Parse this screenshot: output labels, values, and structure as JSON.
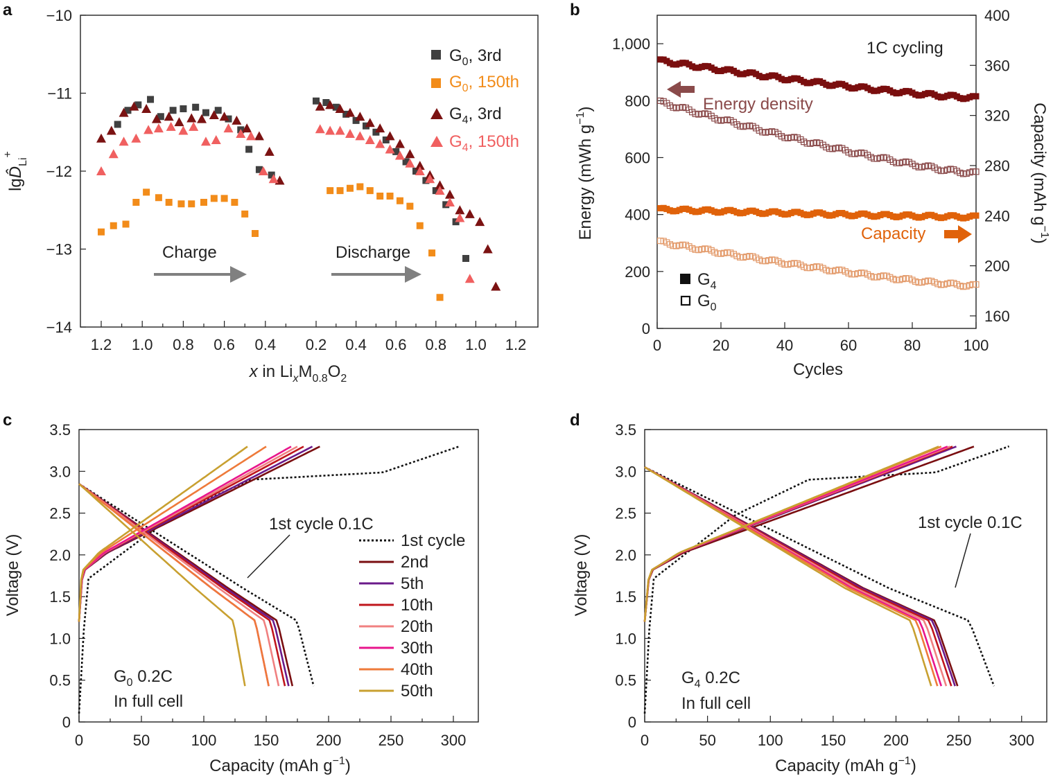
{
  "chart_data": [
    {
      "panel": "a",
      "type": "scatter",
      "ylabel": "lgD̂Li+",
      "xlabel": "x in LixM0.8O2",
      "ylim": [
        -14,
        -10
      ],
      "yticks": [
        "−10",
        "−11",
        "−12",
        "−13",
        "−14"
      ],
      "xticks": [
        "1.2",
        "1.0",
        "0.8",
        "0.6",
        "0.4",
        "0.2",
        "0.4",
        "0.6",
        "0.8",
        "1.0",
        "1.2"
      ],
      "annotations": [
        "Charge",
        "Discharge"
      ],
      "series": [
        {
          "name": "G0, 3rd",
          "color": "#404040",
          "marker": "square",
          "charge": [
            [
              1.12,
              -11.4
            ],
            [
              1.07,
              -11.22
            ],
            [
              1.02,
              -11.15
            ],
            [
              0.96,
              -11.08
            ],
            [
              0.91,
              -11.3
            ],
            [
              0.85,
              -11.22
            ],
            [
              0.8,
              -11.2
            ],
            [
              0.74,
              -11.18
            ],
            [
              0.69,
              -11.25
            ],
            [
              0.63,
              -11.22
            ],
            [
              0.58,
              -11.33
            ],
            [
              0.52,
              -11.47
            ],
            [
              0.48,
              -11.72
            ],
            [
              0.43,
              -11.98
            ],
            [
              0.37,
              -12.05
            ]
          ],
          "discharge": [
            [
              0.2,
              -11.1
            ],
            [
              0.25,
              -11.12
            ],
            [
              0.3,
              -11.18
            ],
            [
              0.35,
              -11.27
            ],
            [
              0.4,
              -11.35
            ],
            [
              0.45,
              -11.42
            ],
            [
              0.5,
              -11.5
            ],
            [
              0.55,
              -11.6
            ],
            [
              0.6,
              -11.75
            ],
            [
              0.65,
              -11.88
            ],
            [
              0.7,
              -12.0
            ],
            [
              0.75,
              -12.12
            ],
            [
              0.8,
              -12.25
            ],
            [
              0.85,
              -12.43
            ],
            [
              0.9,
              -12.65
            ],
            [
              0.95,
              -13.12
            ]
          ]
        },
        {
          "name": "G0, 150th",
          "color": "#f28c1a",
          "marker": "square",
          "charge": [
            [
              1.2,
              -12.78
            ],
            [
              1.14,
              -12.7
            ],
            [
              1.08,
              -12.68
            ],
            [
              1.03,
              -12.4
            ],
            [
              0.98,
              -12.27
            ],
            [
              0.92,
              -12.34
            ],
            [
              0.87,
              -12.4
            ],
            [
              0.81,
              -12.42
            ],
            [
              0.76,
              -12.42
            ],
            [
              0.7,
              -12.4
            ],
            [
              0.65,
              -12.35
            ],
            [
              0.6,
              -12.35
            ],
            [
              0.55,
              -12.4
            ],
            [
              0.5,
              -12.55
            ],
            [
              0.45,
              -12.8
            ]
          ],
          "discharge": [
            [
              0.27,
              -12.25
            ],
            [
              0.32,
              -12.25
            ],
            [
              0.37,
              -12.22
            ],
            [
              0.42,
              -12.2
            ],
            [
              0.47,
              -12.25
            ],
            [
              0.52,
              -12.32
            ],
            [
              0.57,
              -12.32
            ],
            [
              0.62,
              -12.38
            ],
            [
              0.67,
              -12.45
            ],
            [
              0.72,
              -12.7
            ],
            [
              0.78,
              -13.05
            ],
            [
              0.82,
              -13.62
            ]
          ]
        },
        {
          "name": "G4, 3rd",
          "color": "#7b1212",
          "marker": "triangle",
          "charge": [
            [
              1.2,
              -11.58
            ],
            [
              1.15,
              -11.48
            ],
            [
              1.09,
              -11.25
            ],
            [
              1.04,
              -11.17
            ],
            [
              0.98,
              -11.2
            ],
            [
              0.93,
              -11.33
            ],
            [
              0.87,
              -11.3
            ],
            [
              0.82,
              -11.37
            ],
            [
              0.76,
              -11.32
            ],
            [
              0.71,
              -11.33
            ],
            [
              0.65,
              -11.28
            ],
            [
              0.6,
              -11.3
            ],
            [
              0.54,
              -11.35
            ],
            [
              0.49,
              -11.45
            ],
            [
              0.43,
              -11.55
            ],
            [
              0.38,
              -11.75
            ],
            [
              0.33,
              -12.12
            ]
          ],
          "discharge": [
            [
              0.22,
              -11.17
            ],
            [
              0.27,
              -11.15
            ],
            [
              0.32,
              -11.2
            ],
            [
              0.37,
              -11.25
            ],
            [
              0.42,
              -11.3
            ],
            [
              0.47,
              -11.38
            ],
            [
              0.52,
              -11.45
            ],
            [
              0.57,
              -11.55
            ],
            [
              0.62,
              -11.65
            ],
            [
              0.67,
              -11.78
            ],
            [
              0.72,
              -11.93
            ],
            [
              0.77,
              -12.05
            ],
            [
              0.82,
              -12.18
            ],
            [
              0.87,
              -12.3
            ],
            [
              0.92,
              -12.5
            ],
            [
              0.97,
              -12.55
            ],
            [
              1.02,
              -12.65
            ],
            [
              1.06,
              -13.0
            ],
            [
              1.1,
              -13.48
            ]
          ]
        },
        {
          "name": "G4, 150th",
          "color": "#f06060",
          "marker": "triangle",
          "charge": [
            [
              1.2,
              -12.0
            ],
            [
              1.14,
              -11.78
            ],
            [
              1.09,
              -11.62
            ],
            [
              1.03,
              -11.58
            ],
            [
              0.97,
              -11.47
            ],
            [
              0.92,
              -11.45
            ],
            [
              0.86,
              -11.43
            ],
            [
              0.8,
              -11.48
            ],
            [
              0.75,
              -11.43
            ],
            [
              0.69,
              -11.62
            ],
            [
              0.64,
              -11.6
            ],
            [
              0.58,
              -11.45
            ],
            [
              0.52,
              -11.52
            ],
            [
              0.47,
              -11.55
            ],
            [
              0.41,
              -12.0
            ],
            [
              0.36,
              -12.1
            ]
          ],
          "discharge": [
            [
              0.22,
              -11.46
            ],
            [
              0.27,
              -11.48
            ],
            [
              0.32,
              -11.48
            ],
            [
              0.37,
              -11.52
            ],
            [
              0.42,
              -11.55
            ],
            [
              0.47,
              -11.6
            ],
            [
              0.52,
              -11.65
            ],
            [
              0.57,
              -11.72
            ],
            [
              0.62,
              -11.8
            ],
            [
              0.67,
              -11.9
            ],
            [
              0.72,
              -12.0
            ],
            [
              0.77,
              -12.1
            ],
            [
              0.82,
              -12.25
            ],
            [
              0.87,
              -12.4
            ],
            [
              0.92,
              -12.6
            ],
            [
              0.97,
              -13.38
            ]
          ]
        }
      ]
    },
    {
      "panel": "b",
      "type": "scatter",
      "title": "1C cycling",
      "xlabel": "Cycles",
      "ylabel": "Energy (mWh g−1)",
      "ylabel_right": "Capacity (mAh g−1)",
      "xlim": [
        0,
        100
      ],
      "ylim": [
        0,
        1100
      ],
      "ylim_right": [
        150,
        400
      ],
      "xticks": [
        "0",
        "20",
        "40",
        "60",
        "80",
        "100"
      ],
      "yticks": [
        "0",
        "200",
        "400",
        "600",
        "800",
        "1,000"
      ],
      "yticks_right": [
        "160",
        "200",
        "240",
        "280",
        "320",
        "360",
        "400"
      ],
      "annotations": [
        "Energy density",
        "Capacity"
      ],
      "legend": [
        "G4",
        "G0"
      ],
      "series": [
        {
          "name": "G4",
          "quantity": "energy",
          "axis": "left",
          "color": "#7a0e0e",
          "filled": true,
          "start": 940,
          "end": 810
        },
        {
          "name": "G0",
          "quantity": "energy",
          "axis": "left",
          "color": "#8a4a4a",
          "filled": false,
          "start": 795,
          "end": 545
        },
        {
          "name": "G4",
          "quantity": "capacity",
          "axis": "right",
          "color": "#e0620a",
          "filled": true,
          "start": 245,
          "end": 239
        },
        {
          "name": "G0",
          "quantity": "capacity",
          "axis": "right",
          "color": "#e39a6a",
          "filled": false,
          "start": 219,
          "end": 184
        }
      ]
    },
    {
      "panel": "c",
      "type": "line",
      "xlabel": "Capacity (mAh g−1)",
      "ylabel": "Voltage (V)",
      "xlim": [
        0,
        320
      ],
      "ylim": [
        0,
        3.5
      ],
      "xticks": [
        "0",
        "50",
        "100",
        "150",
        "200",
        "250",
        "300"
      ],
      "yticks": [
        "0",
        "0.5",
        "1.0",
        "1.5",
        "2.0",
        "2.5",
        "3.0",
        "3.5"
      ],
      "annotations": [
        "1st cycle 0.1C",
        "G0 0.2C",
        "In full cell"
      ],
      "legend": [
        "1st cycle",
        "2nd",
        "5th",
        "10th",
        "20th",
        "30th",
        "40th",
        "50th"
      ],
      "series": [
        {
          "name": "1st cycle",
          "color": "#111111",
          "dashed": true,
          "charge_end": 305,
          "discharge_end": 188
        },
        {
          "name": "2nd",
          "color": "#7a0e10",
          "charge_end": 193,
          "discharge_end": 171
        },
        {
          "name": "5th",
          "color": "#6a1a8a",
          "charge_end": 187,
          "discharge_end": 168
        },
        {
          "name": "10th",
          "color": "#c0161c",
          "charge_end": 180,
          "discharge_end": 165
        },
        {
          "name": "20th",
          "color": "#f08080",
          "charge_end": 175,
          "discharge_end": 160
        },
        {
          "name": "30th",
          "color": "#e8168c",
          "charge_end": 170,
          "discharge_end": 152
        },
        {
          "name": "40th",
          "color": "#ee7a3a",
          "charge_end": 150,
          "discharge_end": 152
        },
        {
          "name": "50th",
          "color": "#c8a030",
          "charge_end": 135,
          "discharge_end": 133
        }
      ]
    },
    {
      "panel": "d",
      "type": "line",
      "xlabel": "Capacity (mAh g−1)",
      "ylabel": "Voltage (V)",
      "xlim": [
        0,
        320
      ],
      "ylim": [
        0,
        3.5
      ],
      "xticks": [
        "0",
        "50",
        "100",
        "150",
        "200",
        "250",
        "300"
      ],
      "yticks": [
        "0",
        "0.5",
        "1.0",
        "1.5",
        "2.0",
        "2.5",
        "3.0",
        "3.5"
      ],
      "annotations": [
        "1st cycle 0.1C",
        "G4 0.2C",
        "In full cell"
      ],
      "series": [
        {
          "name": "1st cycle",
          "color": "#111111",
          "dashed": true,
          "charge_end": 290,
          "discharge_end": 278
        },
        {
          "name": "2nd",
          "color": "#7a0e10",
          "charge_end": 262,
          "discharge_end": 249
        },
        {
          "name": "5th",
          "color": "#6a1a8a",
          "charge_end": 248,
          "discharge_end": 247
        },
        {
          "name": "10th",
          "color": "#c0161c",
          "charge_end": 245,
          "discharge_end": 244
        },
        {
          "name": "20th",
          "color": "#f08080",
          "charge_end": 243,
          "discharge_end": 240
        },
        {
          "name": "30th",
          "color": "#e8168c",
          "charge_end": 241,
          "discharge_end": 236
        },
        {
          "name": "40th",
          "color": "#ee7a3a",
          "charge_end": 236,
          "discharge_end": 233
        },
        {
          "name": "50th",
          "color": "#c8a030",
          "charge_end": 234,
          "discharge_end": 228
        }
      ]
    }
  ],
  "text": {
    "panel_a": "a",
    "panel_b": "b",
    "panel_c": "c",
    "panel_d": "d",
    "a_legend_g0_3": "G0, 3rd",
    "a_legend_g0_150": "G0, 150th",
    "a_legend_g4_3": "G4, 3rd",
    "a_legend_g4_150": "G4, 150th",
    "a_charge": "Charge",
    "a_discharge": "Discharge",
    "b_title": "1C cycling",
    "b_energy_density": "Energy density",
    "b_capacity": "Capacity",
    "b_cycles": "Cycles",
    "c_first_cycle": "1st cycle 0.1C",
    "c_cell_line1": "G0 0.2C",
    "c_cell_line2": "In full cell",
    "d_first_cycle": "1st cycle 0.1C",
    "d_cell_line1": "G4 0.2C",
    "d_cell_line2": "In full cell",
    "voltage_label": "Voltage (V)"
  }
}
